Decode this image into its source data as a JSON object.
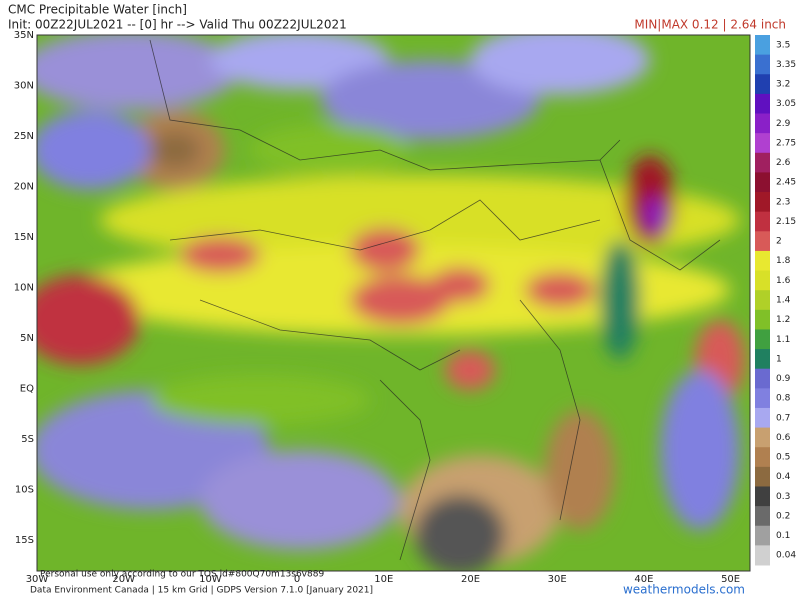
{
  "header": {
    "title": "CMC Precipitable Water [inch]",
    "subtitle": "Init: 00Z22JUL2021 -- [0] hr --> Valid Thu 00Z22JUL2021",
    "minmax": "MIN|MAX 0.12 | 2.64 inch"
  },
  "map": {
    "lat_labels": [
      "35N",
      "30N",
      "25N",
      "20N",
      "15N",
      "10N",
      "5N",
      "EQ",
      "5S",
      "10S",
      "15S"
    ],
    "lon_labels": [
      "30W",
      "20W",
      "10W",
      "0",
      "10E",
      "20E",
      "30E",
      "40E",
      "50E"
    ]
  },
  "colorbar": {
    "labels": [
      "3.5",
      "3.35",
      "3.2",
      "3.05",
      "2.9",
      "2.75",
      "2.6",
      "2.45",
      "2.3",
      "2.15",
      "2",
      "1.8",
      "1.6",
      "1.4",
      "1.2",
      "1.1",
      "1",
      "0.9",
      "0.8",
      "0.7",
      "0.6",
      "0.5",
      "0.4",
      "0.3",
      "0.2",
      "0.1",
      "0.04"
    ],
    "colors": [
      "#4aa0e0",
      "#3a70d0",
      "#2040b0",
      "#6010c0",
      "#8a20c8",
      "#b040d0",
      "#a02060",
      "#8c1030",
      "#a01828",
      "#c03040",
      "#d85a58",
      "#e8e830",
      "#d8e028",
      "#b0d028",
      "#80c028",
      "#40a040",
      "#208060",
      "#6a6ad0",
      "#8080e0",
      "#a8a8f0",
      "#c8a070",
      "#b08050",
      "#8c6a40",
      "#404040",
      "#6a6a6a",
      "#a0a0a0",
      "#d0d0d0"
    ]
  },
  "footer": {
    "notice": "Personal use only according to our TOS id#800Q70m13s6v889",
    "credit": "Data Environment Canada | 15 km Grid | GDPS Version 7.1.0 [January 2021]",
    "site": "weathermodels.com"
  }
}
